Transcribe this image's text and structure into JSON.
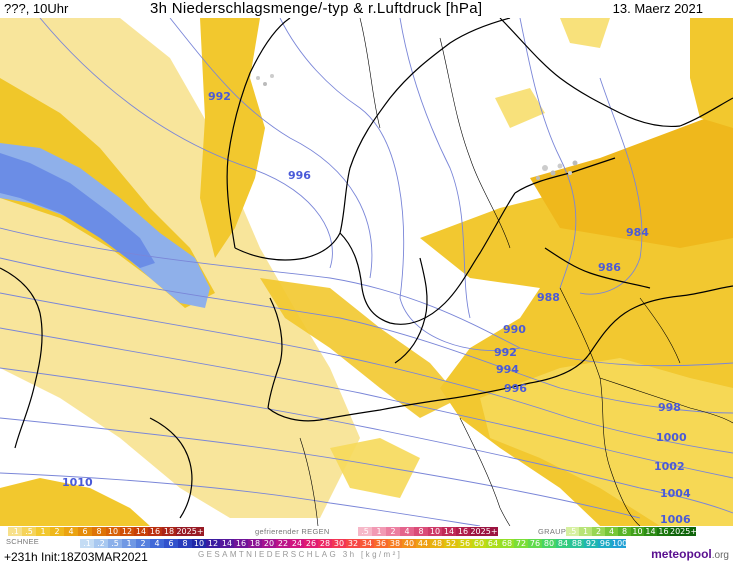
{
  "header": {
    "valid_time": "???, 10Uhr",
    "title": "3h Niederschlagsmenge/-typ & r.Luftdruck [hPa]",
    "date": "13. Maerz 2021"
  },
  "map": {
    "isobar_labels": [
      "992",
      "996",
      "984",
      "986",
      "988",
      "990",
      "992",
      "994",
      "996",
      "998",
      "1000",
      "1002",
      "1004",
      "1006",
      "1010"
    ]
  },
  "legend": {
    "snow_label": "SCHNEE",
    "freezing_label": "gefrierender REGEN",
    "graupel_label": "GRAUPEL",
    "total_label": "GESAMTNIEDERSCHLAG 3h [kg/m²]",
    "rain": {
      "labels": [
        ".1",
        ".5",
        "1",
        "2",
        "4",
        "6",
        "8",
        "10",
        "12",
        "14",
        "16",
        "18",
        "2025+"
      ],
      "colors": [
        "#f7e08a",
        "#f5d35a",
        "#f2c82e",
        "#efb81c",
        "#eba311",
        "#e58c0a",
        "#de7408",
        "#d86208",
        "#d05008",
        "#c84008",
        "#bb3010",
        "#aa2418",
        "#981a24"
      ]
    },
    "freezing": {
      "labels": [
        ".5",
        "1",
        "2",
        "4",
        "8",
        "10",
        "14",
        "16",
        "2025+"
      ],
      "colors": [
        "#f6b8c8",
        "#f29ab4",
        "#ec7ea0",
        "#e4648c",
        "#da4c78",
        "#ce3a68",
        "#c02a58",
        "#b01e4c",
        "#9c1440"
      ]
    },
    "graupel": {
      "labels": [
        ".5",
        "1",
        "2",
        "4",
        "8",
        "10",
        "14",
        "16",
        "2025+"
      ],
      "colors": [
        "#d6f0a0",
        "#b8e478",
        "#98d654",
        "#78c638",
        "#58b428",
        "#40a01c",
        "#2c8c14",
        "#1c780e",
        "#0e640a"
      ]
    },
    "snow": {
      "labels": [
        ".1",
        ".2",
        ".5",
        "1",
        "2",
        "4",
        "6",
        "8",
        "10",
        "12",
        "14",
        "16",
        "18",
        "20",
        "22",
        "24",
        "26",
        "28",
        "30",
        "32",
        "34",
        "36",
        "38",
        "40",
        "44",
        "48",
        "52",
        "56",
        "60",
        "64",
        "68",
        "72",
        "76",
        "80",
        "84",
        "88",
        "92",
        "96",
        "100"
      ],
      "colors": [
        "#c4dcf4",
        "#a8c8f0",
        "#8cb0ea",
        "#7098e4",
        "#5680de",
        "#4068d8",
        "#3252cc",
        "#283cbc",
        "#2028a8",
        "#3a1ca0",
        "#56189c",
        "#701498",
        "#8a1494",
        "#a41490",
        "#bc1488",
        "#d01680",
        "#e01c72",
        "#ec2864",
        "#f23654",
        "#f64646",
        "#f85838",
        "#f86a2c",
        "#f67c22",
        "#f28e1a",
        "#eea014",
        "#e8b210",
        "#e0c20e",
        "#d4d010",
        "#c2da14",
        "#acde1c",
        "#94e028",
        "#7ade38",
        "#60da4c",
        "#48d464",
        "#34cc7e",
        "#28c298",
        "#20b6b0",
        "#1eaac4",
        "#20a0d4"
      ]
    }
  },
  "footer": {
    "run_info": "+231h Init:18Z03MAR2021",
    "brand_main": "meteopool",
    "brand_suffix": ".org"
  }
}
